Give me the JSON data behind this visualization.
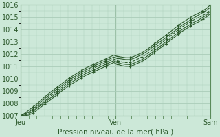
{
  "background_color": "#cce8d8",
  "plot_bg_color": "#cce8d8",
  "grid_color": "#aaccb8",
  "line_color": "#2d5a2d",
  "tick_label_color": "#2d5a2d",
  "xlabel": "Pression niveau de la mer( hPa )",
  "xlabel_color": "#2d5a2d",
  "ylim": [
    1007,
    1016
  ],
  "yticks": [
    1007,
    1008,
    1009,
    1010,
    1011,
    1012,
    1013,
    1014,
    1015,
    1016
  ],
  "xtick_labels": [
    "Jeu",
    "Ven",
    "Sam"
  ],
  "xtick_positions": [
    0.0,
    0.5,
    1.0
  ],
  "n_points": 48,
  "series": [
    [
      1007.0,
      1007.15,
      1007.3,
      1007.55,
      1007.8,
      1008.1,
      1008.4,
      1008.65,
      1008.9,
      1009.15,
      1009.4,
      1009.65,
      1009.9,
      1010.1,
      1010.3,
      1010.5,
      1010.7,
      1010.85,
      1011.0,
      1011.15,
      1011.3,
      1011.45,
      1011.6,
      1011.75,
      1011.65,
      1011.6,
      1011.55,
      1011.55,
      1011.65,
      1011.8,
      1011.95,
      1012.15,
      1012.4,
      1012.65,
      1012.9,
      1013.1,
      1013.35,
      1013.6,
      1013.85,
      1014.1,
      1014.35,
      1014.55,
      1014.75,
      1014.95,
      1015.15,
      1015.35,
      1015.55,
      1015.8
    ],
    [
      1007.0,
      1007.2,
      1007.45,
      1007.7,
      1007.95,
      1008.25,
      1008.55,
      1008.8,
      1009.05,
      1009.3,
      1009.55,
      1009.8,
      1010.05,
      1010.25,
      1010.45,
      1010.65,
      1010.85,
      1011.0,
      1011.15,
      1011.3,
      1011.45,
      1011.6,
      1011.75,
      1011.9,
      1011.8,
      1011.75,
      1011.7,
      1011.7,
      1011.8,
      1011.95,
      1012.1,
      1012.3,
      1012.55,
      1012.8,
      1013.05,
      1013.3,
      1013.55,
      1013.8,
      1014.05,
      1014.3,
      1014.55,
      1014.75,
      1014.95,
      1015.15,
      1015.3,
      1015.5,
      1015.7,
      1016.0
    ],
    [
      1007.0,
      1007.1,
      1007.25,
      1007.45,
      1007.7,
      1007.95,
      1008.2,
      1008.5,
      1008.75,
      1009.0,
      1009.25,
      1009.5,
      1009.75,
      1009.95,
      1010.15,
      1010.35,
      1010.55,
      1010.7,
      1010.85,
      1011.0,
      1011.15,
      1011.3,
      1011.45,
      1011.6,
      1011.45,
      1011.35,
      1011.3,
      1011.3,
      1011.45,
      1011.6,
      1011.75,
      1011.95,
      1012.2,
      1012.45,
      1012.7,
      1012.95,
      1013.2,
      1013.45,
      1013.7,
      1013.95,
      1014.2,
      1014.4,
      1014.6,
      1014.8,
      1014.95,
      1015.1,
      1015.3,
      1015.6
    ],
    [
      1007.0,
      1007.05,
      1007.15,
      1007.35,
      1007.6,
      1007.85,
      1008.1,
      1008.35,
      1008.6,
      1008.85,
      1009.1,
      1009.35,
      1009.6,
      1009.8,
      1010.0,
      1010.2,
      1010.4,
      1010.55,
      1010.7,
      1010.85,
      1011.0,
      1011.15,
      1011.3,
      1011.45,
      1011.3,
      1011.2,
      1011.15,
      1011.15,
      1011.25,
      1011.4,
      1011.55,
      1011.75,
      1012.0,
      1012.25,
      1012.5,
      1012.75,
      1013.0,
      1013.25,
      1013.5,
      1013.75,
      1014.0,
      1014.2,
      1014.4,
      1014.6,
      1014.75,
      1014.95,
      1015.15,
      1015.5
    ],
    [
      1007.0,
      1007.0,
      1007.05,
      1007.2,
      1007.45,
      1007.7,
      1007.95,
      1008.2,
      1008.45,
      1008.7,
      1008.95,
      1009.2,
      1009.45,
      1009.65,
      1009.85,
      1010.05,
      1010.25,
      1010.4,
      1010.55,
      1010.7,
      1010.85,
      1011.0,
      1011.15,
      1011.3,
      1011.15,
      1011.05,
      1011.0,
      1011.0,
      1011.1,
      1011.25,
      1011.4,
      1011.6,
      1011.85,
      1012.1,
      1012.35,
      1012.6,
      1012.85,
      1013.1,
      1013.35,
      1013.6,
      1013.85,
      1014.05,
      1014.25,
      1014.45,
      1014.6,
      1014.8,
      1015.0,
      1015.3
    ]
  ],
  "lstyles": [
    "-",
    "-",
    "--",
    "-",
    "-"
  ],
  "marker_styles": [
    "+",
    "+",
    "+",
    "+",
    "+"
  ],
  "marker_every": 3
}
